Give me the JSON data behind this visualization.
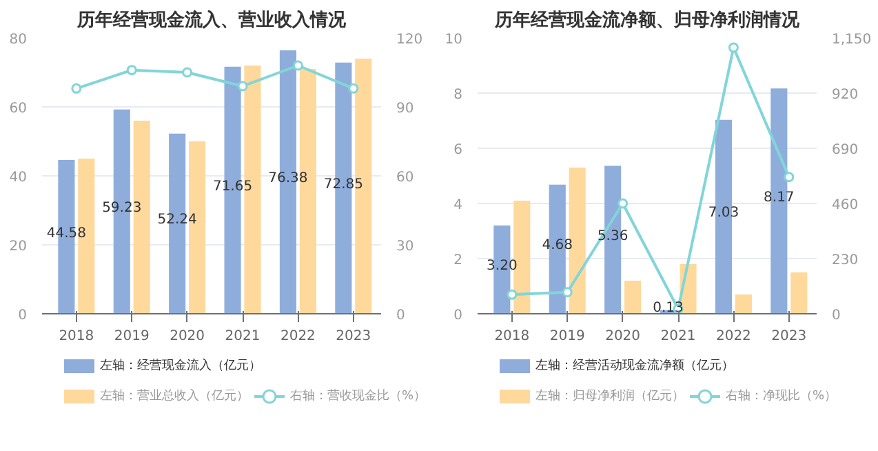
{
  "chart_data": [
    {
      "type": "bar",
      "title": "历年经营现金流入、营业收入情况",
      "categories": [
        "2018",
        "2019",
        "2020",
        "2021",
        "2022",
        "2023"
      ],
      "ylim": [
        0,
        80
      ],
      "yticks": [
        0,
        20,
        40,
        60,
        80
      ],
      "y2lim": [
        0,
        120
      ],
      "y2ticks": [
        0,
        30,
        60,
        90,
        120
      ],
      "grid": "y",
      "legend": "bottom",
      "marker": "circle",
      "series": [
        {
          "name": "左轴：经营现金流入（亿元）",
          "color": "#8eaddb",
          "values": [
            44.58,
            59.23,
            52.24,
            71.65,
            76.38,
            72.85
          ],
          "value_labels": [
            "44.58",
            "59.23",
            "52.24",
            "71.65",
            "76.38",
            "72.85"
          ]
        },
        {
          "name": "左轴：营业总收入（亿元）",
          "color": "#fed99b",
          "values": [
            45,
            56,
            50,
            72,
            71,
            74
          ]
        },
        {
          "name": "右轴：营收现金比（%）",
          "type": "line",
          "axis": "y2",
          "color": "#82d5d8",
          "values": [
            98,
            106,
            105,
            99,
            108,
            98
          ]
        }
      ]
    },
    {
      "type": "bar",
      "title": "历年经营现金流净额、归母净利润情况",
      "categories": [
        "2018",
        "2019",
        "2020",
        "2021",
        "2022",
        "2023"
      ],
      "ylim": [
        0,
        10
      ],
      "yticks": [
        0,
        2,
        4,
        6,
        8,
        10
      ],
      "y2lim": [
        0,
        1150
      ],
      "y2ticks": [
        0,
        230,
        460,
        690,
        920,
        {
          "value": 1150,
          "label": "1,150"
        }
      ],
      "grid": "y",
      "legend": "bottom",
      "marker": "circle",
      "series": [
        {
          "name": "左轴：经营活动现金流净额（亿元）",
          "color": "#8eaddb",
          "values": [
            3.2,
            4.68,
            5.36,
            0.13,
            7.03,
            8.17
          ],
          "value_labels": [
            "3.20",
            "4.68",
            "5.36",
            "0.13",
            "7.03",
            "8.17"
          ]
        },
        {
          "name": "左轴：归母净利润（亿元）",
          "color": "#fed99b",
          "values": [
            4.1,
            5.3,
            1.2,
            1.8,
            0.7,
            1.5
          ]
        },
        {
          "name": "右轴：净现比（%）",
          "type": "line",
          "axis": "y2",
          "color": "#82d5d8",
          "values": [
            80,
            90,
            460,
            20,
            1110,
            570
          ]
        }
      ]
    }
  ]
}
